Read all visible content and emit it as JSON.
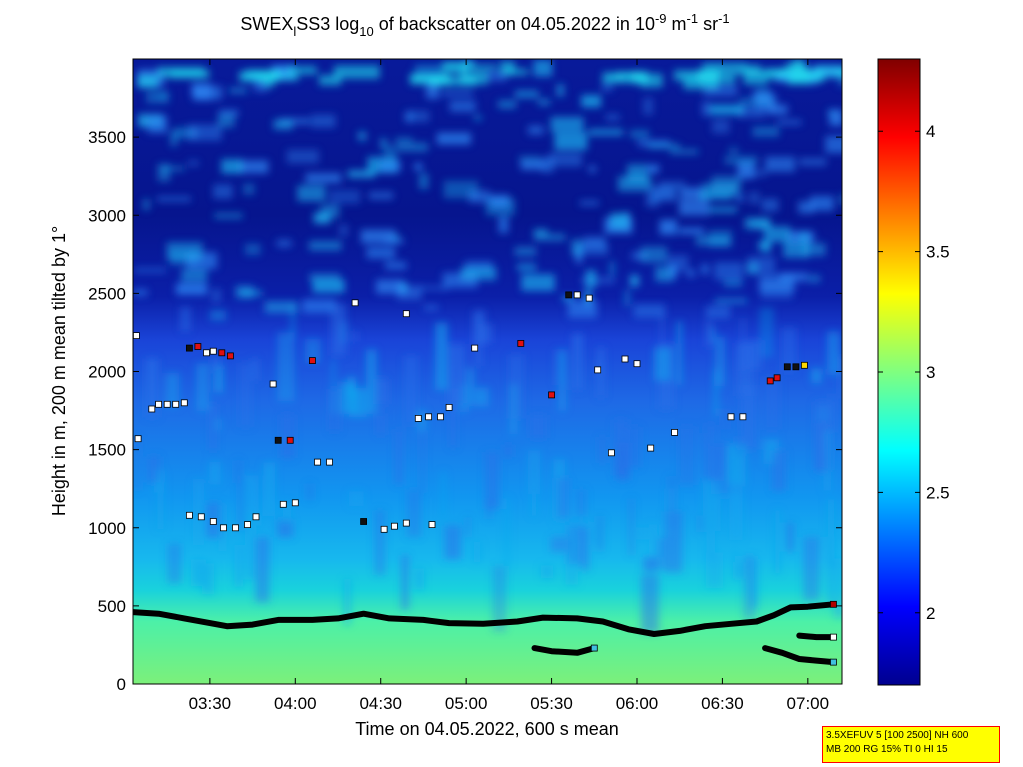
{
  "chart_data": {
    "type": "heatmap",
    "title": {
      "prefix": "SWEX",
      "sub1": "l",
      "mid": "SS3 log",
      "sub2": "10",
      "mid2": " of backscatter on 04.05.2022 in 10",
      "sup1": "-9",
      "mid3": " m",
      "sup2": "-1",
      "mid4": " sr",
      "sup3": "-1"
    },
    "xlabel": "Time on 04.05.2022, 600 s mean",
    "ylabel": "Height in m, 200 m mean tilted by 1°",
    "x_range_hours": [
      3.05,
      7.2
    ],
    "x_ticks": [
      {
        "hour": 3.5,
        "label": "03:30"
      },
      {
        "hour": 4.0,
        "label": "04:00"
      },
      {
        "hour": 4.5,
        "label": "04:30"
      },
      {
        "hour": 5.0,
        "label": "05:00"
      },
      {
        "hour": 5.5,
        "label": "05:30"
      },
      {
        "hour": 6.0,
        "label": "06:00"
      },
      {
        "hour": 6.5,
        "label": "06:30"
      },
      {
        "hour": 7.0,
        "label": "07:00"
      }
    ],
    "ylim": [
      0,
      4000
    ],
    "y_ticks": [
      0,
      500,
      1000,
      1500,
      2000,
      2500,
      3000,
      3500
    ],
    "colorbar": {
      "range": [
        1.7,
        4.3
      ],
      "ticks": [
        2,
        2.5,
        3,
        3.5,
        4
      ],
      "colormap": "jet"
    },
    "surface_layer": [
      [
        3.05,
        460
      ],
      [
        3.2,
        450
      ],
      [
        3.35,
        420
      ],
      [
        3.5,
        390
      ],
      [
        3.6,
        370
      ],
      [
        3.75,
        380
      ],
      [
        3.9,
        410
      ],
      [
        4.1,
        410
      ],
      [
        4.25,
        420
      ],
      [
        4.4,
        450
      ],
      [
        4.55,
        420
      ],
      [
        4.75,
        410
      ],
      [
        4.9,
        390
      ],
      [
        5.1,
        385
      ],
      [
        5.3,
        400
      ],
      [
        5.45,
        425
      ],
      [
        5.65,
        420
      ],
      [
        5.8,
        400
      ],
      [
        5.95,
        350
      ],
      [
        6.1,
        320
      ],
      [
        6.25,
        340
      ],
      [
        6.4,
        370
      ],
      [
        6.55,
        385
      ],
      [
        6.7,
        400
      ],
      [
        6.8,
        440
      ],
      [
        6.9,
        490
      ],
      [
        7.0,
        495
      ],
      [
        7.15,
        510
      ]
    ],
    "lower_layer_a": [
      [
        5.4,
        230
      ],
      [
        5.5,
        210
      ],
      [
        5.65,
        200
      ],
      [
        5.75,
        230
      ]
    ],
    "lower_layer_b": [
      [
        6.75,
        230
      ],
      [
        6.85,
        200
      ],
      [
        6.95,
        160
      ],
      [
        7.05,
        150
      ],
      [
        7.15,
        140
      ]
    ],
    "lower_layer_c": [
      [
        6.95,
        310
      ],
      [
        7.05,
        300
      ],
      [
        7.15,
        300
      ]
    ],
    "markers": [
      {
        "x": 3.07,
        "y": 2230,
        "c": "w"
      },
      {
        "x": 3.08,
        "y": 1570,
        "c": "w"
      },
      {
        "x": 3.16,
        "y": 1760,
        "c": "w"
      },
      {
        "x": 3.2,
        "y": 1790,
        "c": "w"
      },
      {
        "x": 3.25,
        "y": 1790,
        "c": "w"
      },
      {
        "x": 3.3,
        "y": 1790,
        "c": "w"
      },
      {
        "x": 3.35,
        "y": 1800,
        "c": "w"
      },
      {
        "x": 3.38,
        "y": 2150,
        "c": "k"
      },
      {
        "x": 3.43,
        "y": 2160,
        "c": "r"
      },
      {
        "x": 3.48,
        "y": 2120,
        "c": "w"
      },
      {
        "x": 3.52,
        "y": 2130,
        "c": "w"
      },
      {
        "x": 3.57,
        "y": 2120,
        "c": "r"
      },
      {
        "x": 3.62,
        "y": 2100,
        "c": "r"
      },
      {
        "x": 3.38,
        "y": 1080,
        "c": "w"
      },
      {
        "x": 3.45,
        "y": 1070,
        "c": "w"
      },
      {
        "x": 3.52,
        "y": 1040,
        "c": "w"
      },
      {
        "x": 3.58,
        "y": 1000,
        "c": "w"
      },
      {
        "x": 3.65,
        "y": 1000,
        "c": "w"
      },
      {
        "x": 3.72,
        "y": 1020,
        "c": "w"
      },
      {
        "x": 3.77,
        "y": 1070,
        "c": "w"
      },
      {
        "x": 3.87,
        "y": 1920,
        "c": "w"
      },
      {
        "x": 3.9,
        "y": 1560,
        "c": "k"
      },
      {
        "x": 3.97,
        "y": 1560,
        "c": "r"
      },
      {
        "x": 3.93,
        "y": 1150,
        "c": "w"
      },
      {
        "x": 4.0,
        "y": 1160,
        "c": "w"
      },
      {
        "x": 4.1,
        "y": 2070,
        "c": "r"
      },
      {
        "x": 4.13,
        "y": 1420,
        "c": "w"
      },
      {
        "x": 4.2,
        "y": 1420,
        "c": "w"
      },
      {
        "x": 4.35,
        "y": 2440,
        "c": "w"
      },
      {
        "x": 4.4,
        "y": 1040,
        "c": "k"
      },
      {
        "x": 4.52,
        "y": 990,
        "c": "w"
      },
      {
        "x": 4.58,
        "y": 1010,
        "c": "w"
      },
      {
        "x": 4.65,
        "y": 1030,
        "c": "w"
      },
      {
        "x": 4.65,
        "y": 2370,
        "c": "w"
      },
      {
        "x": 4.72,
        "y": 1700,
        "c": "w"
      },
      {
        "x": 4.78,
        "y": 1710,
        "c": "w"
      },
      {
        "x": 4.8,
        "y": 1020,
        "c": "w"
      },
      {
        "x": 4.85,
        "y": 1710,
        "c": "w"
      },
      {
        "x": 4.9,
        "y": 1770,
        "c": "w"
      },
      {
        "x": 5.05,
        "y": 2150,
        "c": "w"
      },
      {
        "x": 5.32,
        "y": 2180,
        "c": "r"
      },
      {
        "x": 5.5,
        "y": 1850,
        "c": "r"
      },
      {
        "x": 5.6,
        "y": 2490,
        "c": "k"
      },
      {
        "x": 5.65,
        "y": 2490,
        "c": "w"
      },
      {
        "x": 5.72,
        "y": 2470,
        "c": "w"
      },
      {
        "x": 5.77,
        "y": 2010,
        "c": "w"
      },
      {
        "x": 5.85,
        "y": 1480,
        "c": "w"
      },
      {
        "x": 5.93,
        "y": 2080,
        "c": "w"
      },
      {
        "x": 6.0,
        "y": 2050,
        "c": "w"
      },
      {
        "x": 6.08,
        "y": 1510,
        "c": "w"
      },
      {
        "x": 6.22,
        "y": 1610,
        "c": "w"
      },
      {
        "x": 6.55,
        "y": 1710,
        "c": "w"
      },
      {
        "x": 6.62,
        "y": 1710,
        "c": "w"
      },
      {
        "x": 6.78,
        "y": 1940,
        "c": "r"
      },
      {
        "x": 6.82,
        "y": 1960,
        "c": "r"
      },
      {
        "x": 6.88,
        "y": 2030,
        "c": "k"
      },
      {
        "x": 6.93,
        "y": 2030,
        "c": "k"
      },
      {
        "x": 6.98,
        "y": 2040,
        "c": "y"
      }
    ],
    "info_lines": [
      "3.5XEFUV 5 [100 2500] NH 600",
      "MB 200 RG 15% TI 0 HI 15"
    ]
  }
}
